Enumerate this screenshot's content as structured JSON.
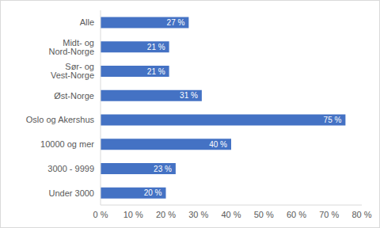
{
  "chart_data": {
    "type": "bar",
    "orientation": "horizontal",
    "categories": [
      "Alle",
      "Midt- og Nord-Norge",
      "Sør- og Vest-Norge",
      "Øst-Norge",
      "Oslo og Akershus",
      "10000 og mer",
      "3000 - 9999",
      "Under 3000"
    ],
    "values": [
      27,
      21,
      21,
      31,
      75,
      40,
      23,
      20
    ],
    "value_labels": [
      "27 %",
      "21 %",
      "21 %",
      "31 %",
      "75 %",
      "40 %",
      "23 %",
      "20 %"
    ],
    "color": "#4472c4",
    "xlim": [
      0,
      80
    ],
    "xticks": [
      {
        "value": 0,
        "label": "0 %"
      },
      {
        "value": 10,
        "label": "10 %"
      },
      {
        "value": 20,
        "label": "20 %"
      },
      {
        "value": 30,
        "label": "30 %"
      },
      {
        "value": 40,
        "label": "40 %"
      },
      {
        "value": 50,
        "label": "50 %"
      },
      {
        "value": 60,
        "label": "60 %"
      },
      {
        "value": 70,
        "label": "70 %"
      },
      {
        "value": 80,
        "label": "80 %"
      }
    ],
    "grid": false,
    "data_labels": true
  }
}
